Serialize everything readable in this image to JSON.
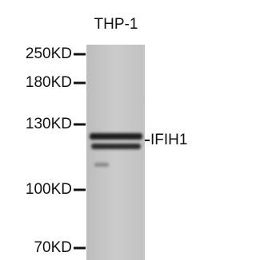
{
  "lane": {
    "label": "THP-1"
  },
  "markers": [
    "250KD",
    "180KD",
    "130KD",
    "100KD",
    "70KD"
  ],
  "band": {
    "label": "IFIH1"
  }
}
